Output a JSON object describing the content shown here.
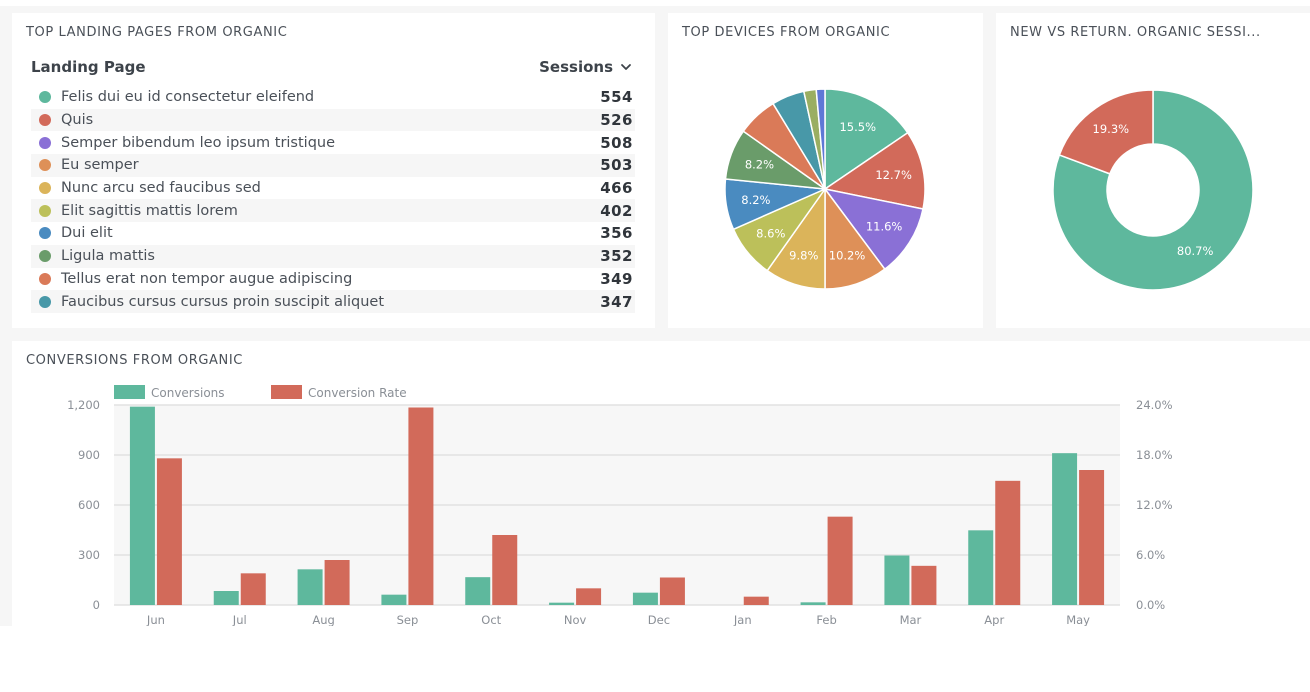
{
  "landing": {
    "title": "TOP LANDING PAGES FROM ORGANIC",
    "col_landing_page": "Landing Page",
    "col_sessions": "Sessions",
    "sort_icon": "chevron-down-icon",
    "rows": [
      {
        "label": "Felis dui eu id consectetur eleifend",
        "value": "554",
        "color": "#5eb89d"
      },
      {
        "label": "Quis",
        "value": "526",
        "color": "#d26a5a"
      },
      {
        "label": "Semper bibendum leo ipsum tristique",
        "value": "508",
        "color": "#8a70d6"
      },
      {
        "label": "Eu semper",
        "value": "503",
        "color": "#de9058"
      },
      {
        "label": "Nunc arcu sed faucibus sed",
        "value": "466",
        "color": "#dbb45a"
      },
      {
        "label": "Elit sagittis mattis lorem",
        "value": "402",
        "color": "#bcc05a"
      },
      {
        "label": "Dui elit",
        "value": "356",
        "color": "#4a8bc0"
      },
      {
        "label": "Ligula mattis",
        "value": "352",
        "color": "#6a9c6a"
      },
      {
        "label": "Tellus erat non tempor augue adipiscing",
        "value": "349",
        "color": "#da7a58"
      },
      {
        "label": "Faucibus cursus cursus proin suscipit aliquet",
        "value": "347",
        "color": "#4898a8"
      }
    ]
  },
  "devices": {
    "title": "TOP DEVICES FROM ORGANIC"
  },
  "newret": {
    "title": "NEW VS RETURN. ORGANIC SESSI..."
  },
  "conversions": {
    "title": "CONVERSIONS FROM ORGANIC"
  },
  "chart_data": [
    {
      "id": "devices",
      "type": "pie",
      "title": "TOP DEVICES FROM ORGANIC",
      "slices": [
        {
          "value": 15.5,
          "label": "15.5%",
          "color": "#5eb89d"
        },
        {
          "value": 12.7,
          "label": "12.7%",
          "color": "#d26a5a"
        },
        {
          "value": 11.6,
          "label": "11.6%",
          "color": "#8a70d6"
        },
        {
          "value": 10.2,
          "label": "10.2%",
          "color": "#de9058"
        },
        {
          "value": 9.8,
          "label": "9.8%",
          "color": "#dbb45a"
        },
        {
          "value": 8.6,
          "label": "8.6%",
          "color": "#bcc05a"
        },
        {
          "value": 8.2,
          "label": "8.2%",
          "color": "#4a8bc0"
        },
        {
          "value": 8.2,
          "label": "8.2%",
          "color": "#6a9c6a"
        },
        {
          "value": 6.5,
          "label": "",
          "color": "#da7a58"
        },
        {
          "value": 5.3,
          "label": "",
          "color": "#4898a8"
        },
        {
          "value": 2.0,
          "label": "",
          "color": "#9aae62"
        },
        {
          "value": 1.4,
          "label": "",
          "color": "#5f78d6"
        }
      ]
    },
    {
      "id": "newret",
      "type": "pie",
      "subtype": "donut",
      "title": "NEW VS RETURN. ORGANIC SESSI...",
      "slices": [
        {
          "value": 80.7,
          "label": "80.7%",
          "color": "#5eb89d"
        },
        {
          "value": 19.3,
          "label": "19.3%",
          "color": "#d26a5a"
        }
      ]
    },
    {
      "id": "conversions",
      "type": "bar",
      "title": "CONVERSIONS FROM ORGANIC",
      "categories": [
        "Jun",
        "Jul",
        "Aug",
        "Sep",
        "Oct",
        "Nov",
        "Dec",
        "Jan",
        "Feb",
        "Mar",
        "Apr",
        "May"
      ],
      "series": [
        {
          "name": "Conversions",
          "axis": "left",
          "color": "#5eb89d",
          "values": [
            1190,
            84,
            214,
            62,
            167,
            14,
            74,
            0,
            16,
            297,
            448,
            911
          ]
        },
        {
          "name": "Conversion Rate",
          "axis": "right",
          "color": "#d26a5a",
          "unit": "%",
          "values": [
            17.6,
            3.8,
            5.4,
            23.7,
            8.4,
            2.0,
            3.3,
            1.0,
            10.6,
            4.7,
            14.9,
            16.2
          ]
        }
      ],
      "y_left": {
        "min": 0,
        "max": 1200,
        "ticks": [
          0,
          300,
          600,
          900,
          1200
        ],
        "tick_labels": [
          "0",
          "300",
          "600",
          "900",
          "1,200"
        ]
      },
      "y_right": {
        "min": 0,
        "max": 24,
        "ticks": [
          0,
          6,
          12,
          18,
          24
        ],
        "tick_labels": [
          "0.0%",
          "6.0%",
          "12.0%",
          "18.0%",
          "24.0%"
        ]
      },
      "grid": true,
      "legend": "top-left"
    }
  ]
}
